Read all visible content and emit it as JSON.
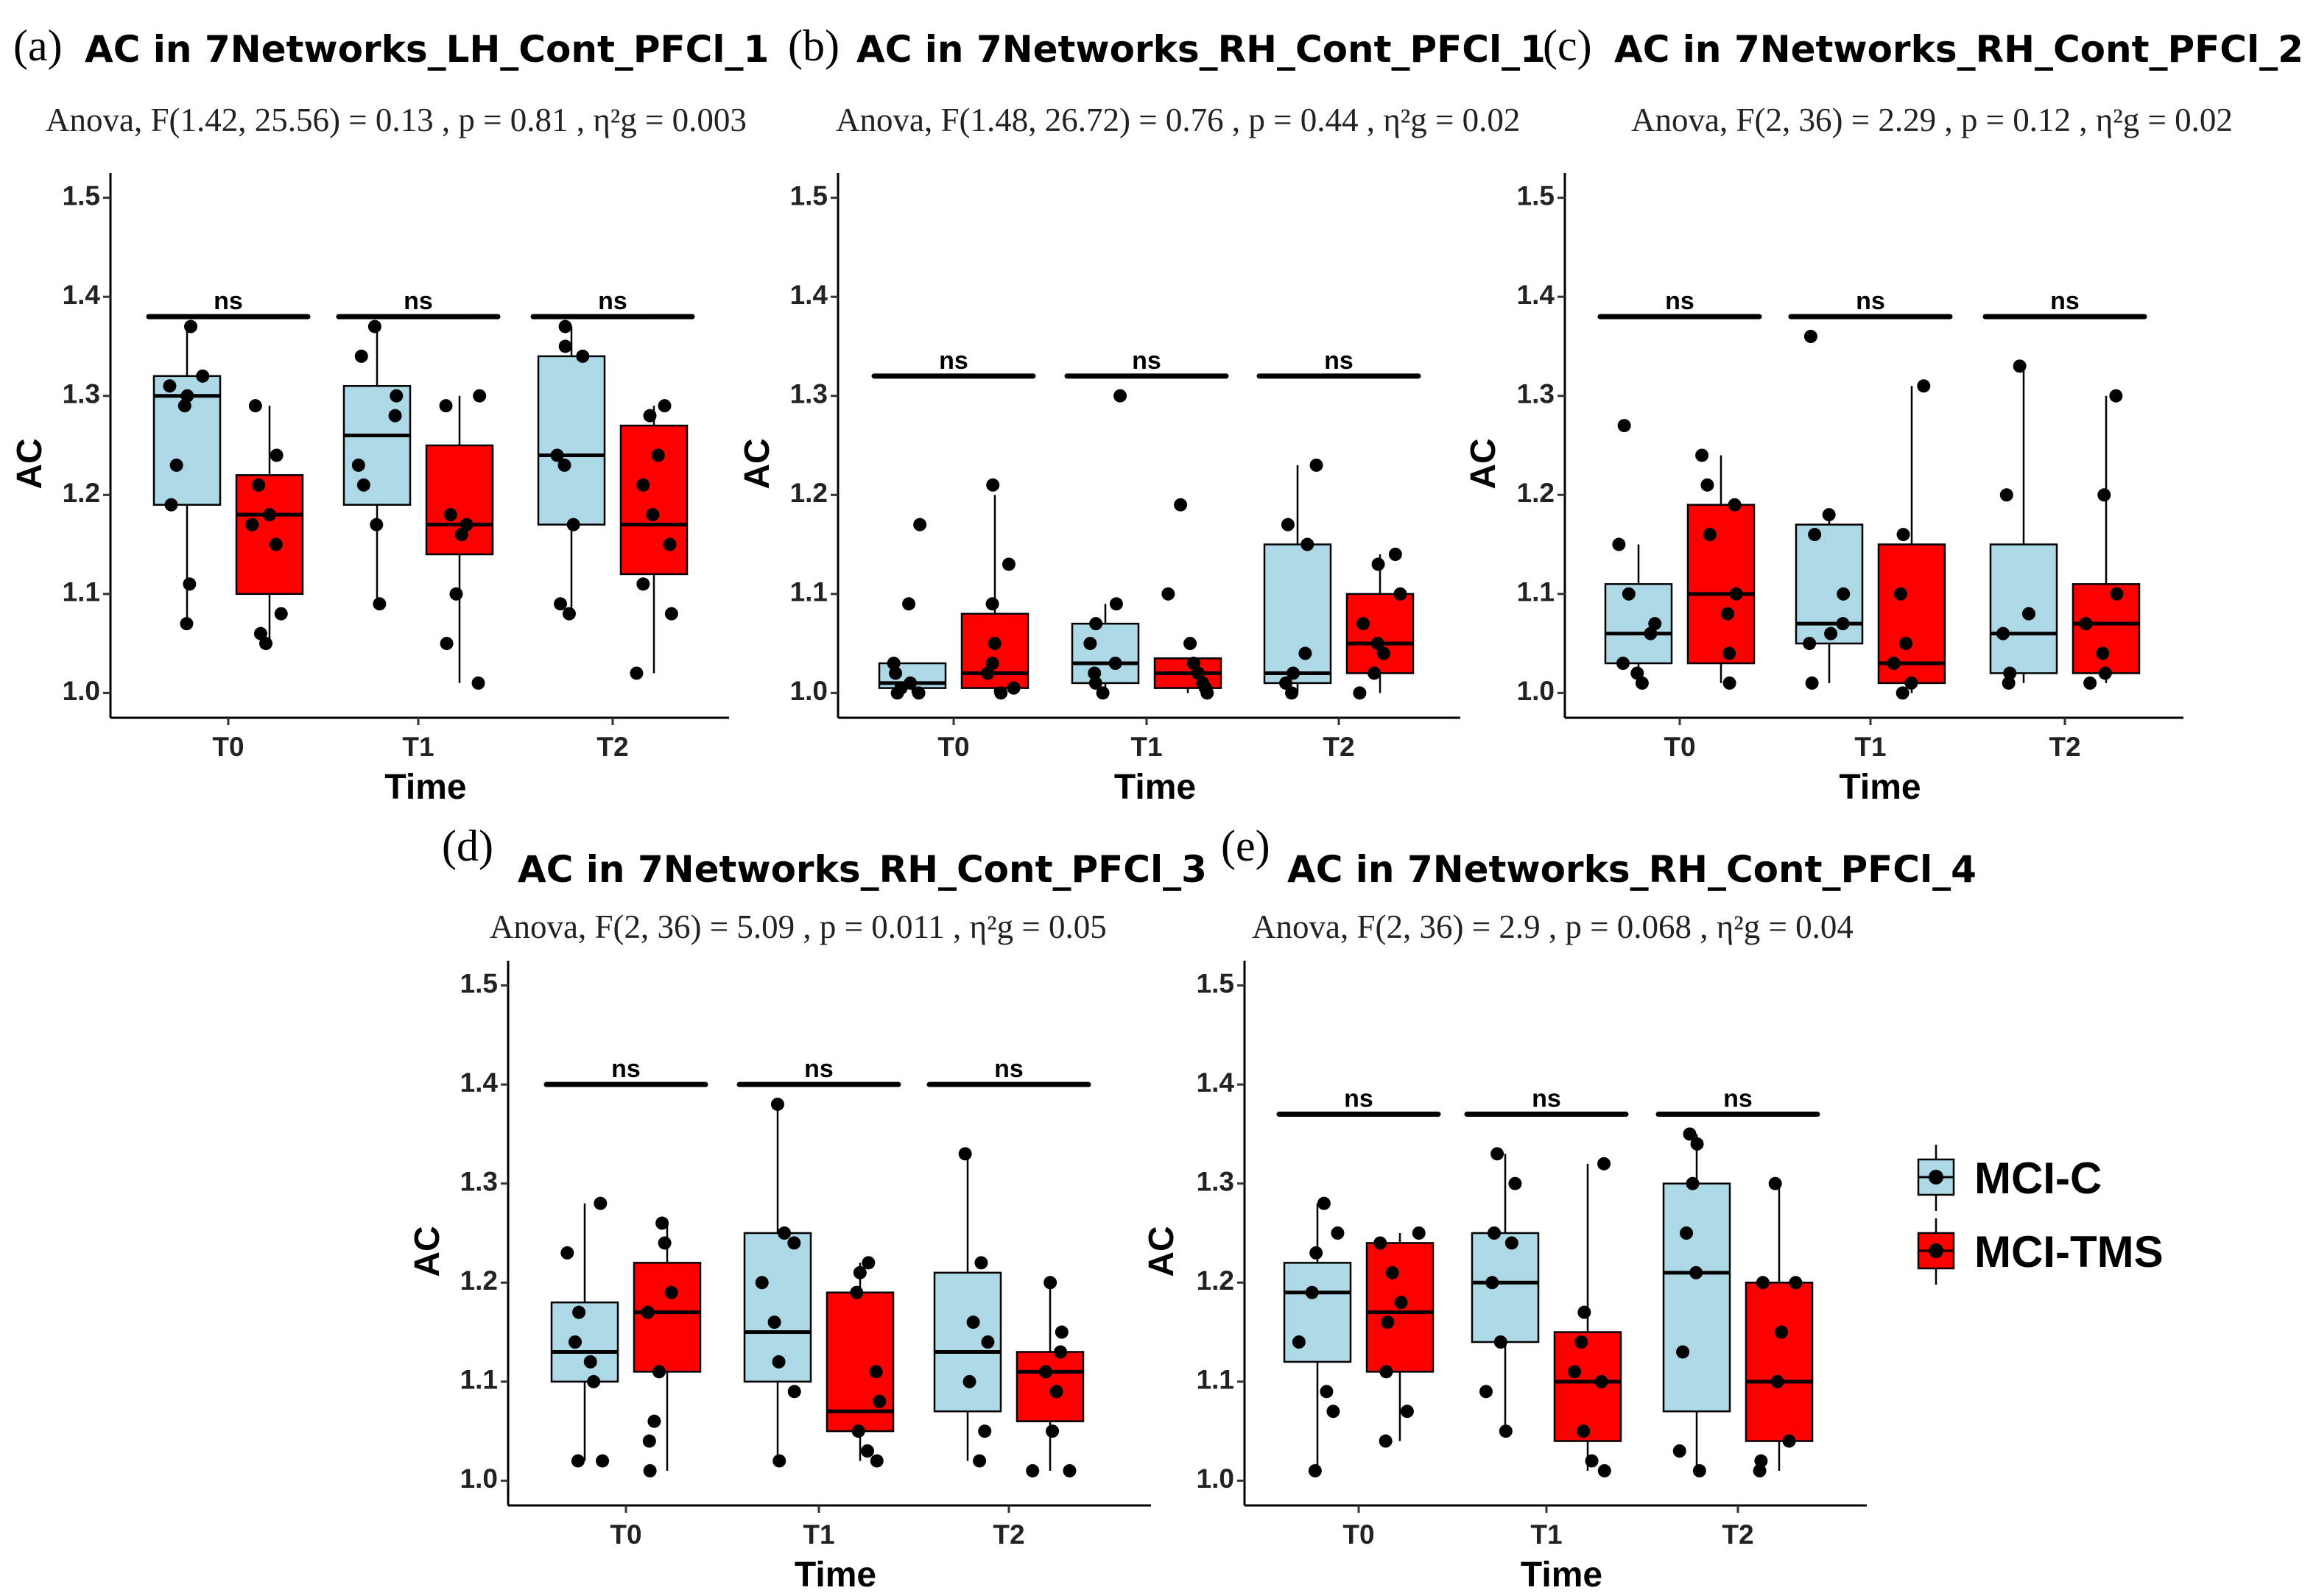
{
  "colors": {
    "mci_c": "#add8e6",
    "mci_tms": "#ff0000",
    "point": "#000000",
    "axis": "#000000"
  },
  "legend": {
    "items": [
      {
        "label": "MCI-C",
        "color": "#add8e6"
      },
      {
        "label": "MCI-TMS",
        "color": "#ff0000"
      }
    ]
  },
  "chart_data": [
    {
      "type": "box",
      "panel": "(a)",
      "title": "AC in 7Networks_LH_Cont_PFCl_1",
      "stat": "Anova, F(1.42, 25.56) = 0.13 , p = 0.81 , η²g = 0.003",
      "xlabel": "Time",
      "ylabel": "AC",
      "ylim": [
        0.975,
        1.525
      ],
      "yticks": [
        "1.0",
        "1.1",
        "1.2",
        "1.3",
        "1.4",
        "1.5"
      ],
      "categories": [
        "T0",
        "T1",
        "T2"
      ],
      "groups": [
        "MCI-C",
        "MCI-TMS"
      ],
      "boxes": [
        [
          {
            "q1": 1.19,
            "median": 1.3,
            "q3": 1.32,
            "whislo": 1.07,
            "whishi": 1.37,
            "points": [
              1.07,
              1.11,
              1.19,
              1.23,
              1.29,
              1.3,
              1.31,
              1.32,
              1.37
            ]
          },
          {
            "q1": 1.1,
            "median": 1.18,
            "q3": 1.22,
            "whislo": 1.05,
            "whishi": 1.29,
            "points": [
              1.05,
              1.06,
              1.08,
              1.15,
              1.17,
              1.18,
              1.21,
              1.24,
              1.29
            ]
          }
        ],
        [
          {
            "q1": 1.19,
            "median": 1.26,
            "q3": 1.31,
            "whislo": 1.09,
            "whishi": 1.37,
            "points": [
              1.09,
              1.17,
              1.21,
              1.23,
              1.28,
              1.3,
              1.34,
              1.37
            ]
          },
          {
            "q1": 1.14,
            "median": 1.17,
            "q3": 1.25,
            "whislo": 1.01,
            "whishi": 1.3,
            "points": [
              1.01,
              1.05,
              1.1,
              1.16,
              1.17,
              1.18,
              1.29,
              1.3
            ]
          }
        ],
        [
          {
            "q1": 1.17,
            "median": 1.24,
            "q3": 1.34,
            "whislo": 1.08,
            "whishi": 1.37,
            "points": [
              1.08,
              1.09,
              1.17,
              1.23,
              1.24,
              1.34,
              1.35,
              1.37
            ]
          },
          {
            "q1": 1.12,
            "median": 1.17,
            "q3": 1.27,
            "whislo": 1.02,
            "whishi": 1.29,
            "points": [
              1.02,
              1.08,
              1.11,
              1.15,
              1.18,
              1.21,
              1.24,
              1.28,
              1.29
            ]
          }
        ]
      ],
      "brackets": [
        {
          "label": "ns",
          "y": 1.38
        },
        {
          "label": "ns",
          "y": 1.38
        },
        {
          "label": "ns",
          "y": 1.38
        }
      ]
    },
    {
      "type": "box",
      "panel": "(b)",
      "title": "AC in 7Networks_RH_Cont_PFCl_1",
      "stat": "Anova, F(1.48, 26.72) = 0.76 , p = 0.44 , η²g = 0.02",
      "xlabel": "Time",
      "ylabel": "AC",
      "ylim": [
        0.975,
        1.525
      ],
      "yticks": [
        "1.0",
        "1.1",
        "1.2",
        "1.3",
        "1.4",
        "1.5"
      ],
      "categories": [
        "T0",
        "T1",
        "T2"
      ],
      "groups": [
        "MCI-C",
        "MCI-TMS"
      ],
      "boxes": [
        [
          {
            "q1": 1.005,
            "median": 1.01,
            "q3": 1.03,
            "whislo": 1.0,
            "whishi": 1.03,
            "points": [
              1.0,
              1.0,
              1.005,
              1.01,
              1.02,
              1.03,
              1.09,
              1.17
            ]
          },
          {
            "q1": 1.005,
            "median": 1.02,
            "q3": 1.08,
            "whislo": 1.0,
            "whishi": 1.2,
            "points": [
              1.0,
              1.005,
              1.02,
              1.03,
              1.05,
              1.09,
              1.13,
              1.21
            ]
          }
        ],
        [
          {
            "q1": 1.01,
            "median": 1.03,
            "q3": 1.07,
            "whislo": 1.0,
            "whishi": 1.09,
            "points": [
              1.0,
              1.01,
              1.02,
              1.03,
              1.05,
              1.07,
              1.09,
              1.3
            ]
          },
          {
            "q1": 1.005,
            "median": 1.02,
            "q3": 1.035,
            "whislo": 1.0,
            "whishi": 1.035,
            "points": [
              1.0,
              1.005,
              1.01,
              1.02,
              1.03,
              1.05,
              1.1,
              1.19
            ]
          }
        ],
        [
          {
            "q1": 1.01,
            "median": 1.02,
            "q3": 1.15,
            "whislo": 1.0,
            "whishi": 1.23,
            "points": [
              1.0,
              1.01,
              1.02,
              1.04,
              1.15,
              1.17,
              1.23
            ]
          },
          {
            "q1": 1.02,
            "median": 1.05,
            "q3": 1.1,
            "whislo": 1.0,
            "whishi": 1.14,
            "points": [
              1.0,
              1.02,
              1.04,
              1.05,
              1.07,
              1.1,
              1.13,
              1.14
            ]
          }
        ]
      ],
      "brackets": [
        {
          "label": "ns",
          "y": 1.32
        },
        {
          "label": "ns",
          "y": 1.32
        },
        {
          "label": "ns",
          "y": 1.32
        }
      ]
    },
    {
      "type": "box",
      "panel": "(c)",
      "title": "AC in 7Networks_RH_Cont_PFCl_2",
      "stat": "Anova, F(2, 36) = 2.29 , p = 0.12 , η²g = 0.02",
      "xlabel": "Time",
      "ylabel": "AC",
      "ylim": [
        0.975,
        1.525
      ],
      "yticks": [
        "1.0",
        "1.1",
        "1.2",
        "1.3",
        "1.4",
        "1.5"
      ],
      "categories": [
        "T0",
        "T1",
        "T2"
      ],
      "groups": [
        "MCI-C",
        "MCI-TMS"
      ],
      "boxes": [
        [
          {
            "q1": 1.03,
            "median": 1.06,
            "q3": 1.11,
            "whislo": 1.01,
            "whishi": 1.15,
            "points": [
              1.01,
              1.02,
              1.03,
              1.06,
              1.07,
              1.1,
              1.15,
              1.27
            ]
          },
          {
            "q1": 1.03,
            "median": 1.1,
            "q3": 1.19,
            "whislo": 1.01,
            "whishi": 1.24,
            "points": [
              1.01,
              1.04,
              1.08,
              1.1,
              1.16,
              1.19,
              1.21,
              1.24
            ]
          }
        ],
        [
          {
            "q1": 1.05,
            "median": 1.07,
            "q3": 1.17,
            "whislo": 1.01,
            "whishi": 1.18,
            "points": [
              1.01,
              1.05,
              1.06,
              1.07,
              1.1,
              1.16,
              1.18,
              1.36
            ]
          },
          {
            "q1": 1.01,
            "median": 1.03,
            "q3": 1.15,
            "whislo": 1.0,
            "whishi": 1.31,
            "points": [
              1.0,
              1.01,
              1.03,
              1.05,
              1.1,
              1.16,
              1.31
            ]
          }
        ],
        [
          {
            "q1": 1.02,
            "median": 1.06,
            "q3": 1.15,
            "whislo": 1.01,
            "whishi": 1.33,
            "points": [
              1.01,
              1.02,
              1.06,
              1.08,
              1.2,
              1.33
            ]
          },
          {
            "q1": 1.02,
            "median": 1.07,
            "q3": 1.11,
            "whislo": 1.01,
            "whishi": 1.3,
            "points": [
              1.01,
              1.02,
              1.04,
              1.07,
              1.1,
              1.2,
              1.3
            ]
          }
        ]
      ],
      "brackets": [
        {
          "label": "ns",
          "y": 1.38
        },
        {
          "label": "ns",
          "y": 1.38
        },
        {
          "label": "ns",
          "y": 1.38
        }
      ]
    },
    {
      "type": "box",
      "panel": "(d)",
      "title": "AC in 7Networks_RH_Cont_PFCl_3",
      "stat": "Anova, F(2, 36) = 5.09 , p = 0.011 , η²g = 0.05",
      "xlabel": "Time",
      "ylabel": "AC",
      "ylim": [
        0.975,
        1.525
      ],
      "yticks": [
        "1.0",
        "1.1",
        "1.2",
        "1.3",
        "1.4",
        "1.5"
      ],
      "categories": [
        "T0",
        "T1",
        "T2"
      ],
      "groups": [
        "MCI-C",
        "MCI-TMS"
      ],
      "boxes": [
        [
          {
            "q1": 1.1,
            "median": 1.13,
            "q3": 1.18,
            "whislo": 1.02,
            "whishi": 1.28,
            "points": [
              1.02,
              1.02,
              1.1,
              1.12,
              1.14,
              1.17,
              1.23,
              1.28
            ]
          },
          {
            "q1": 1.11,
            "median": 1.17,
            "q3": 1.22,
            "whislo": 1.01,
            "whishi": 1.26,
            "points": [
              1.01,
              1.04,
              1.06,
              1.11,
              1.17,
              1.19,
              1.24,
              1.26
            ]
          }
        ],
        [
          {
            "q1": 1.1,
            "median": 1.15,
            "q3": 1.25,
            "whislo": 1.02,
            "whishi": 1.38,
            "points": [
              1.02,
              1.09,
              1.12,
              1.16,
              1.2,
              1.24,
              1.25,
              1.38
            ]
          },
          {
            "q1": 1.05,
            "median": 1.07,
            "q3": 1.19,
            "whislo": 1.02,
            "whishi": 1.22,
            "points": [
              1.02,
              1.03,
              1.05,
              1.08,
              1.11,
              1.19,
              1.21,
              1.22
            ]
          }
        ],
        [
          {
            "q1": 1.07,
            "median": 1.13,
            "q3": 1.21,
            "whislo": 1.02,
            "whishi": 1.33,
            "points": [
              1.02,
              1.05,
              1.1,
              1.14,
              1.16,
              1.22,
              1.33
            ]
          },
          {
            "q1": 1.06,
            "median": 1.11,
            "q3": 1.13,
            "whislo": 1.01,
            "whishi": 1.2,
            "points": [
              1.01,
              1.01,
              1.05,
              1.09,
              1.11,
              1.13,
              1.15,
              1.2
            ]
          }
        ]
      ],
      "brackets": [
        {
          "label": "ns",
          "y": 1.4
        },
        {
          "label": "ns",
          "y": 1.4
        },
        {
          "label": "ns",
          "y": 1.4
        }
      ]
    },
    {
      "type": "box",
      "panel": "(e)",
      "title": "AC in 7Networks_RH_Cont_PFCl_4",
      "stat": "Anova, F(2, 36) = 2.9 , p = 0.068 , η²g = 0.04",
      "xlabel": "Time",
      "ylabel": "AC",
      "ylim": [
        0.975,
        1.525
      ],
      "yticks": [
        "1.0",
        "1.1",
        "1.2",
        "1.3",
        "1.4",
        "1.5"
      ],
      "categories": [
        "T0",
        "T1",
        "T2"
      ],
      "groups": [
        "MCI-C",
        "MCI-TMS"
      ],
      "boxes": [
        [
          {
            "q1": 1.12,
            "median": 1.19,
            "q3": 1.22,
            "whislo": 1.01,
            "whishi": 1.28,
            "points": [
              1.01,
              1.07,
              1.09,
              1.14,
              1.19,
              1.23,
              1.25,
              1.28
            ]
          },
          {
            "q1": 1.11,
            "median": 1.17,
            "q3": 1.24,
            "whislo": 1.04,
            "whishi": 1.25,
            "points": [
              1.04,
              1.07,
              1.11,
              1.16,
              1.18,
              1.21,
              1.24,
              1.25
            ]
          }
        ],
        [
          {
            "q1": 1.14,
            "median": 1.2,
            "q3": 1.25,
            "whislo": 1.05,
            "whishi": 1.33,
            "points": [
              1.05,
              1.09,
              1.14,
              1.2,
              1.24,
              1.25,
              1.3,
              1.33
            ]
          },
          {
            "q1": 1.04,
            "median": 1.1,
            "q3": 1.15,
            "whislo": 1.01,
            "whishi": 1.32,
            "points": [
              1.01,
              1.02,
              1.05,
              1.1,
              1.11,
              1.14,
              1.17,
              1.32
            ]
          }
        ],
        [
          {
            "q1": 1.07,
            "median": 1.21,
            "q3": 1.3,
            "whislo": 1.01,
            "whishi": 1.35,
            "points": [
              1.01,
              1.03,
              1.13,
              1.21,
              1.25,
              1.3,
              1.34,
              1.35
            ]
          },
          {
            "q1": 1.04,
            "median": 1.1,
            "q3": 1.2,
            "whislo": 1.01,
            "whishi": 1.3,
            "points": [
              1.01,
              1.02,
              1.04,
              1.1,
              1.15,
              1.2,
              1.2,
              1.3
            ]
          }
        ]
      ],
      "brackets": [
        {
          "label": "ns",
          "y": 1.37
        },
        {
          "label": "ns",
          "y": 1.37
        },
        {
          "label": "ns",
          "y": 1.37
        }
      ]
    }
  ]
}
